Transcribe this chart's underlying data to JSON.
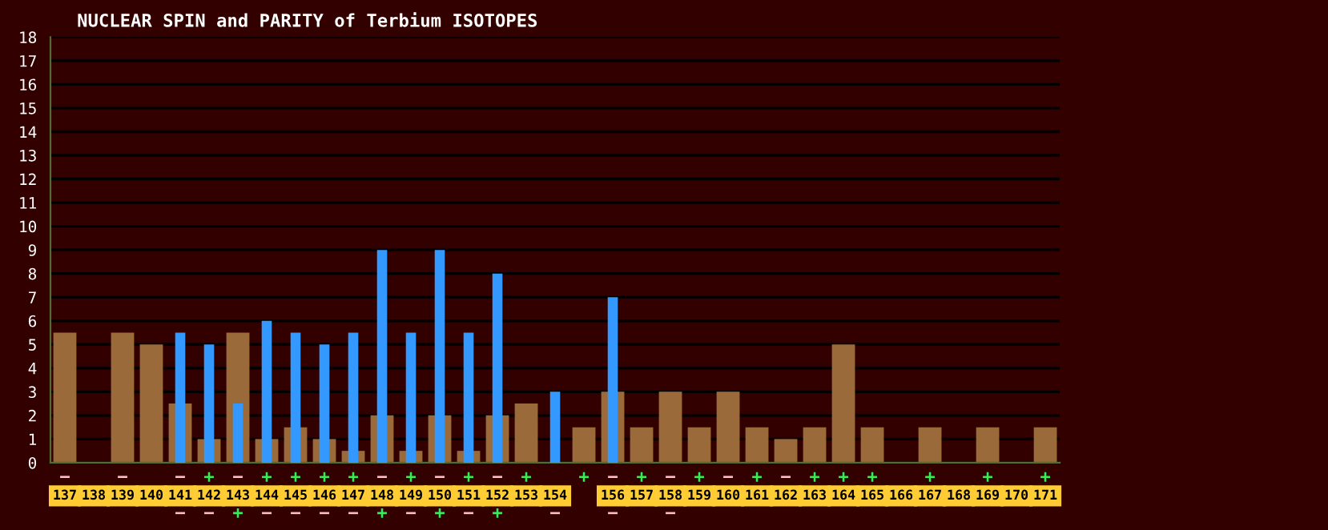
{
  "chart_data": {
    "type": "bar",
    "title": "NUCLEAR SPIN and PARITY of Terbium ISOTOPES",
    "categories": [
      "137",
      "138",
      "139",
      "140",
      "141",
      "142",
      "143",
      "144",
      "145",
      "146",
      "147",
      "148",
      "149",
      "150",
      "151",
      "152",
      "153",
      "154",
      null,
      "156",
      "157",
      "158",
      "159",
      "160",
      "161",
      "162",
      "163",
      "164",
      "165",
      "166",
      "167",
      "168",
      "169",
      "170",
      "171"
    ],
    "series": [
      {
        "color": "#9b6a3a",
        "values": [
          5.5,
          null,
          5.5,
          5,
          2.5,
          1,
          5.5,
          1,
          1.5,
          1,
          0.5,
          2,
          0.5,
          2,
          0.5,
          2,
          2.5,
          0,
          1.5,
          3,
          1.5,
          3,
          1.5,
          3,
          1.5,
          1,
          1.5,
          5,
          1.5,
          null,
          1.5,
          null,
          1.5,
          null,
          1.5
        ],
        "value_labels": [
          "−",
          null,
          "−",
          null,
          "−",
          "+",
          "−",
          "+",
          "+",
          "+",
          "+",
          "−",
          "+",
          "−",
          "+",
          "−",
          "+",
          null,
          "+",
          "−",
          "+",
          "−",
          "+",
          "−",
          "+",
          "−",
          "+",
          "+",
          "+",
          null,
          "+",
          null,
          "+",
          null,
          "+"
        ]
      },
      {
        "color": "#3399ff",
        "values": [
          null,
          null,
          null,
          null,
          5.5,
          5,
          2.5,
          6,
          5.5,
          5,
          5.5,
          9,
          5.5,
          9,
          5.5,
          8,
          null,
          3,
          null,
          7,
          null,
          0,
          null,
          null,
          null,
          null,
          null,
          null,
          null,
          null,
          null,
          null,
          null,
          null,
          null
        ],
        "value_labels": [
          null,
          null,
          null,
          null,
          "−",
          "−",
          "+",
          "−",
          "−",
          "−",
          "−",
          "+",
          "−",
          "+",
          "−",
          "+",
          null,
          "−",
          null,
          "−",
          null,
          "−",
          null,
          null,
          null,
          null,
          null,
          null,
          null,
          null,
          null,
          null,
          null,
          null,
          null
        ]
      }
    ],
    "ylim": [
      0,
      18
    ],
    "yticks": [
      0,
      1,
      2,
      3,
      4,
      5,
      6,
      7,
      8,
      9,
      10,
      11,
      12,
      13,
      14,
      15,
      16,
      17,
      18
    ],
    "grid": "y",
    "legend": false
  }
}
